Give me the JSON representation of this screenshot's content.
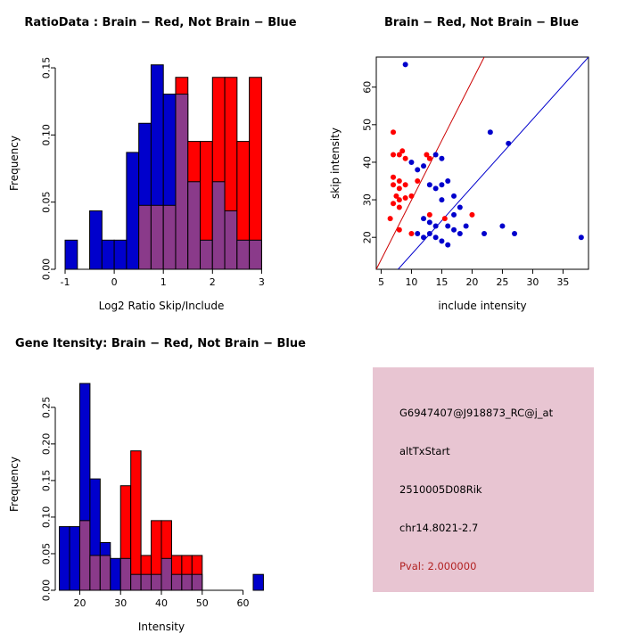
{
  "chart_data": [
    {
      "id": "ratio_hist",
      "type": "bar",
      "variant": "overlaid-histogram",
      "title": "RatioData : Brain − Red, Not Brain − Blue",
      "xlabel": "Log2 Ratio Skip/Include",
      "ylabel": "Frequency",
      "xlim": [
        -1.2,
        3.12
      ],
      "ylim": [
        0,
        0.158
      ],
      "xticks": [
        -1,
        0,
        1,
        2,
        3
      ],
      "xtick_labels": [
        "-1",
        "0",
        "1",
        "2",
        "3"
      ],
      "yticks": [
        0,
        0.05,
        0.1,
        0.15
      ],
      "ytick_labels": [
        "0.00",
        "0.05",
        "0.10",
        "0.15"
      ],
      "bins_start": -1.0,
      "bin_width": 0.25,
      "overlap_color": "#8a3a8a",
      "grid": false,
      "legend": "none",
      "series": [
        {
          "name": "Not Brain (blue)",
          "color": "#0000cc",
          "values": [
            0.0217,
            0,
            0.0435,
            0.0217,
            0.0217,
            0.087,
            0.1087,
            0.1522,
            0.1304,
            0.1304,
            0.0652,
            0.0217,
            0.0652,
            0.0435,
            0.0217,
            0.0217
          ]
        },
        {
          "name": "Brain (red)",
          "color": "#ff0000",
          "values": [
            0,
            0,
            0,
            0,
            0,
            0,
            0.0476,
            0.0476,
            0.0476,
            0.1429,
            0.0952,
            0.0952,
            0.1429,
            0.1429,
            0.0952,
            0.1429
          ]
        }
      ]
    },
    {
      "id": "intensity_scatter",
      "type": "scatter",
      "title": "Brain − Red, Not Brain − Blue",
      "xlabel": "include intensity",
      "ylabel": "skip intensity",
      "xlim": [
        4.2,
        39.2
      ],
      "ylim": [
        11.5,
        68
      ],
      "xticks": [
        5,
        10,
        15,
        20,
        25,
        30,
        35
      ],
      "xtick_labels": [
        "5",
        "10",
        "15",
        "20",
        "25",
        "30",
        "35"
      ],
      "yticks": [
        20,
        30,
        40,
        50,
        60
      ],
      "ytick_labels": [
        "20",
        "30",
        "40",
        "50",
        "60"
      ],
      "grid": false,
      "legend": "none",
      "lines": [
        {
          "name": "brain-fit-line",
          "color": "#cc0000",
          "from": [
            4.2,
            11.5
          ],
          "to": [
            22,
            68
          ]
        },
        {
          "name": "not-brain-fit-line",
          "color": "#0000cc",
          "from": [
            7.8,
            11.5
          ],
          "to": [
            39.2,
            68
          ]
        }
      ],
      "series": [
        {
          "name": "Brain (red)",
          "color": "#ff0000",
          "points": [
            [
              7,
              48
            ],
            [
              8.5,
              43
            ],
            [
              7,
              42
            ],
            [
              8,
              42
            ],
            [
              9,
              41
            ],
            [
              12.5,
              42
            ],
            [
              13,
              41
            ],
            [
              7,
              36
            ],
            [
              8,
              35
            ],
            [
              11,
              35
            ],
            [
              7,
              34
            ],
            [
              8,
              33
            ],
            [
              9,
              34
            ],
            [
              7.5,
              31
            ],
            [
              8,
              30
            ],
            [
              9,
              30.5
            ],
            [
              10,
              31
            ],
            [
              7,
              29
            ],
            [
              8,
              28
            ],
            [
              6.5,
              25
            ],
            [
              8,
              22
            ],
            [
              10,
              21
            ],
            [
              13,
              26
            ],
            [
              15.5,
              25
            ],
            [
              20,
              26
            ]
          ]
        },
        {
          "name": "Not Brain (blue)",
          "color": "#0000cc",
          "points": [
            [
              9,
              66
            ],
            [
              23,
              48
            ],
            [
              26,
              45
            ],
            [
              10,
              40
            ],
            [
              12,
              39
            ],
            [
              11,
              38
            ],
            [
              14,
              42
            ],
            [
              15,
              41
            ],
            [
              16,
              35
            ],
            [
              13,
              34
            ],
            [
              14,
              33
            ],
            [
              15,
              34
            ],
            [
              17,
              31
            ],
            [
              15,
              30
            ],
            [
              18,
              28
            ],
            [
              12,
              25
            ],
            [
              17,
              26
            ],
            [
              13,
              24
            ],
            [
              14,
              23
            ],
            [
              16,
              23
            ],
            [
              19,
              23
            ],
            [
              25,
              23
            ],
            [
              11,
              21
            ],
            [
              12,
              20
            ],
            [
              13,
              21
            ],
            [
              14,
              20
            ],
            [
              17,
              22
            ],
            [
              18,
              21
            ],
            [
              22,
              21
            ],
            [
              27,
              21
            ],
            [
              15,
              19
            ],
            [
              16,
              18
            ],
            [
              38,
              20
            ]
          ]
        }
      ]
    },
    {
      "id": "gene_hist",
      "type": "bar",
      "variant": "overlaid-histogram",
      "title": "Gene Itensity: Brain − Red, Not Brain − Blue",
      "xlabel": "Intensity",
      "ylabel": "Frequency",
      "xlim": [
        14,
        66
      ],
      "ylim": [
        0,
        0.29
      ],
      "xticks": [
        20,
        30,
        40,
        50,
        60
      ],
      "xtick_labels": [
        "20",
        "30",
        "40",
        "50",
        "60"
      ],
      "yticks": [
        0,
        0.05,
        0.1,
        0.15,
        0.2,
        0.25
      ],
      "ytick_labels": [
        "0.00",
        "0.05",
        "0.10",
        "0.15",
        "0.20",
        "0.25"
      ],
      "bins_start": 15,
      "bin_width": 2.5,
      "overlap_color": "#8a3a8a",
      "grid": false,
      "legend": "none",
      "series": [
        {
          "name": "Not Brain (blue)",
          "color": "#0000cc",
          "values": [
            0.087,
            0.087,
            0.2826,
            0.1522,
            0.0652,
            0.0435,
            0.0435,
            0.0217,
            0.0217,
            0.0217,
            0.0435,
            0.0217,
            0.0217,
            0.0217,
            0,
            0,
            0,
            0,
            0,
            0.0217
          ]
        },
        {
          "name": "Brain (red)",
          "color": "#ff0000",
          "values": [
            0,
            0,
            0.0952,
            0.0476,
            0.0476,
            0,
            0.1429,
            0.1905,
            0.0476,
            0.0952,
            0.0952,
            0.0476,
            0.0476,
            0.0476,
            0,
            0,
            0,
            0,
            0,
            0
          ]
        }
      ]
    }
  ],
  "info_panel": {
    "bg": "#e8c5d2",
    "pval_color": "#b22222",
    "lines": [
      "G6947407@J918873_RC@j_at",
      "altTxStart",
      "2510005D08Rik",
      "chr14.8021-2.7"
    ],
    "pval_line": "Pval: 2.000000"
  }
}
